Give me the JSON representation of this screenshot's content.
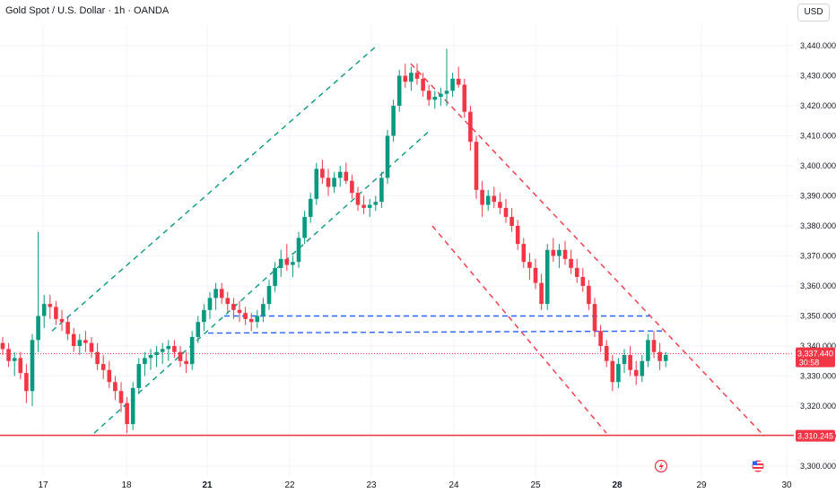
{
  "header": {
    "title": "Gold Spot / U.S. Dollar · 1h · OANDA",
    "currency_label": "USD"
  },
  "colors": {
    "up": "#089981",
    "down": "#f23645",
    "grid": "#f0f3fa",
    "channel_up": "#089981",
    "channel_down": "#f23645",
    "zone": "#2962ff",
    "support": "#f23645",
    "last_price": "#f23645"
  },
  "icons": {
    "event_flash": "lightning-icon",
    "event_flag": "us-flag-icon"
  },
  "chart_data": {
    "type": "candlestick",
    "title": "Gold Spot / U.S. Dollar · 1h · OANDA",
    "ylim": [
      3297,
      3446
    ],
    "y_ticks": [
      3300,
      3310,
      3320,
      3330,
      3340,
      3350,
      3360,
      3370,
      3380,
      3390,
      3400,
      3410,
      3420,
      3430,
      3440
    ],
    "y_tick_labels": [
      "3,300.000",
      "3,310.000",
      "3,320.000",
      "3,330.000",
      "3,340.000",
      "3,350.000",
      "3,360.000",
      "3,370.000",
      "3,380.000",
      "3,390.000",
      "3,400.000",
      "3,410.000",
      "3,420.000",
      "3,430.000",
      "3,440.000"
    ],
    "x_ticks": [
      {
        "label": "17",
        "bold": false
      },
      {
        "label": "18",
        "bold": false
      },
      {
        "label": "21",
        "bold": true
      },
      {
        "label": "22",
        "bold": false
      },
      {
        "label": "23",
        "bold": false
      },
      {
        "label": "24",
        "bold": false
      },
      {
        "label": "25",
        "bold": false
      },
      {
        "label": "28",
        "bold": true
      },
      {
        "label": "29",
        "bold": false
      },
      {
        "label": "30",
        "bold": false
      }
    ],
    "grid": true,
    "last_price": {
      "label": "3,337.440",
      "value": 3337.44,
      "countdown": "30:58"
    },
    "support_line": {
      "label": "3,310.245",
      "value": 3310.245
    },
    "candles_ohlc": [
      [
        3341,
        3343,
        3337,
        3339
      ],
      [
        3339,
        3341,
        3333,
        3335
      ],
      [
        3335,
        3338,
        3330,
        3336
      ],
      [
        3336,
        3338,
        3329,
        3331
      ],
      [
        3331,
        3334,
        3321,
        3325
      ],
      [
        3325,
        3344,
        3320,
        3342
      ],
      [
        3342,
        3378,
        3338,
        3350
      ],
      [
        3350,
        3357,
        3346,
        3354
      ],
      [
        3354,
        3357,
        3349,
        3353
      ],
      [
        3353,
        3355,
        3347,
        3349
      ],
      [
        3349,
        3352,
        3345,
        3348
      ],
      [
        3348,
        3350,
        3342,
        3344
      ],
      [
        3344,
        3346,
        3338,
        3340
      ],
      [
        3340,
        3344,
        3337,
        3342
      ],
      [
        3342,
        3345,
        3338,
        3341
      ],
      [
        3341,
        3343,
        3336,
        3338
      ],
      [
        3338,
        3341,
        3332,
        3334
      ],
      [
        3334,
        3337,
        3329,
        3332
      ],
      [
        3332,
        3335,
        3326,
        3328
      ],
      [
        3328,
        3330,
        3322,
        3325
      ],
      [
        3325,
        3328,
        3318,
        3321
      ],
      [
        3321,
        3323,
        3311,
        3314
      ],
      [
        3314,
        3328,
        3312,
        3326
      ],
      [
        3326,
        3336,
        3324,
        3334
      ],
      [
        3334,
        3338,
        3330,
        3336
      ],
      [
        3336,
        3339,
        3332,
        3337
      ],
      [
        3337,
        3340,
        3333,
        3338
      ],
      [
        3338,
        3341,
        3334,
        3339
      ],
      [
        3339,
        3342,
        3335,
        3340
      ],
      [
        3340,
        3342,
        3336,
        3338
      ],
      [
        3338,
        3340,
        3333,
        3335
      ],
      [
        3335,
        3338,
        3331,
        3334
      ],
      [
        3334,
        3345,
        3332,
        3343
      ],
      [
        3343,
        3350,
        3341,
        3348
      ],
      [
        3348,
        3354,
        3345,
        3352
      ],
      [
        3352,
        3358,
        3349,
        3356
      ],
      [
        3356,
        3361,
        3352,
        3359
      ],
      [
        3359,
        3361,
        3354,
        3356
      ],
      [
        3356,
        3358,
        3351,
        3354
      ],
      [
        3354,
        3356,
        3349,
        3352
      ],
      [
        3352,
        3355,
        3348,
        3351
      ],
      [
        3351,
        3353,
        3347,
        3349
      ],
      [
        3349,
        3351,
        3345,
        3348
      ],
      [
        3348,
        3352,
        3346,
        3350
      ],
      [
        3350,
        3356,
        3348,
        3354
      ],
      [
        3354,
        3362,
        3352,
        3360
      ],
      [
        3360,
        3368,
        3358,
        3366
      ],
      [
        3366,
        3372,
        3363,
        3369
      ],
      [
        3369,
        3374,
        3365,
        3367
      ],
      [
        3367,
        3370,
        3363,
        3368
      ],
      [
        3368,
        3378,
        3366,
        3376
      ],
      [
        3376,
        3385,
        3374,
        3383
      ],
      [
        3383,
        3391,
        3381,
        3389
      ],
      [
        3389,
        3401,
        3387,
        3399
      ],
      [
        3399,
        3402,
        3394,
        3396
      ],
      [
        3396,
        3399,
        3390,
        3393
      ],
      [
        3393,
        3398,
        3391,
        3396
      ],
      [
        3396,
        3400,
        3393,
        3398
      ],
      [
        3398,
        3401,
        3394,
        3395
      ],
      [
        3395,
        3397,
        3389,
        3391
      ],
      [
        3391,
        3393,
        3385,
        3387
      ],
      [
        3387,
        3390,
        3384,
        3386
      ],
      [
        3386,
        3389,
        3383,
        3387
      ],
      [
        3387,
        3390,
        3385,
        3388
      ],
      [
        3388,
        3398,
        3386,
        3396
      ],
      [
        3396,
        3412,
        3394,
        3410
      ],
      [
        3410,
        3422,
        3408,
        3420
      ],
      [
        3420,
        3432,
        3418,
        3430
      ],
      [
        3430,
        3434,
        3426,
        3428
      ],
      [
        3428,
        3433,
        3425,
        3431
      ],
      [
        3431,
        3434,
        3427,
        3429
      ],
      [
        3429,
        3431,
        3423,
        3425
      ],
      [
        3425,
        3427,
        3420,
        3422
      ],
      [
        3422,
        3425,
        3419,
        3423
      ],
      [
        3423,
        3426,
        3420,
        3424
      ],
      [
        3424,
        3439,
        3420,
        3425
      ],
      [
        3425,
        3431,
        3423,
        3429
      ],
      [
        3429,
        3433,
        3426,
        3427
      ],
      [
        3427,
        3429,
        3416,
        3418
      ],
      [
        3418,
        3420,
        3405,
        3408
      ],
      [
        3408,
        3410,
        3389,
        3392
      ],
      [
        3392,
        3395,
        3383,
        3387
      ],
      [
        3387,
        3392,
        3385,
        3390
      ],
      [
        3390,
        3393,
        3386,
        3388
      ],
      [
        3388,
        3391,
        3384,
        3386
      ],
      [
        3386,
        3389,
        3381,
        3383
      ],
      [
        3383,
        3386,
        3378,
        3380
      ],
      [
        3380,
        3382,
        3372,
        3374
      ],
      [
        3374,
        3376,
        3366,
        3368
      ],
      [
        3368,
        3371,
        3362,
        3366
      ],
      [
        3366,
        3369,
        3359,
        3361
      ],
      [
        3361,
        3364,
        3352,
        3354
      ],
      [
        3354,
        3374,
        3352,
        3372
      ],
      [
        3372,
        3376,
        3368,
        3370
      ],
      [
        3370,
        3374,
        3366,
        3372
      ],
      [
        3372,
        3375,
        3367,
        3369
      ],
      [
        3369,
        3372,
        3364,
        3366
      ],
      [
        3366,
        3369,
        3361,
        3363
      ],
      [
        3363,
        3366,
        3358,
        3360
      ],
      [
        3360,
        3362,
        3352,
        3354
      ],
      [
        3354,
        3356,
        3343,
        3345
      ],
      [
        3345,
        3347,
        3338,
        3340
      ],
      [
        3340,
        3342,
        3333,
        3335
      ],
      [
        3335,
        3337,
        3325,
        3328
      ],
      [
        3328,
        3336,
        3326,
        3334
      ],
      [
        3334,
        3339,
        3331,
        3337
      ],
      [
        3337,
        3340,
        3330,
        3332
      ],
      [
        3332,
        3335,
        3327,
        3330
      ],
      [
        3330,
        3337,
        3328,
        3335
      ],
      [
        3335,
        3344,
        3333,
        3342
      ],
      [
        3342,
        3345,
        3336,
        3338
      ],
      [
        3338,
        3341,
        3332,
        3335
      ],
      [
        3335,
        3338,
        3333,
        3337
      ]
    ],
    "drawings": {
      "ascending_channel": {
        "style": "dashed"
      },
      "descending_channel": {
        "style": "dashed"
      },
      "horizontal_zone": {
        "style": "dashed"
      }
    }
  }
}
